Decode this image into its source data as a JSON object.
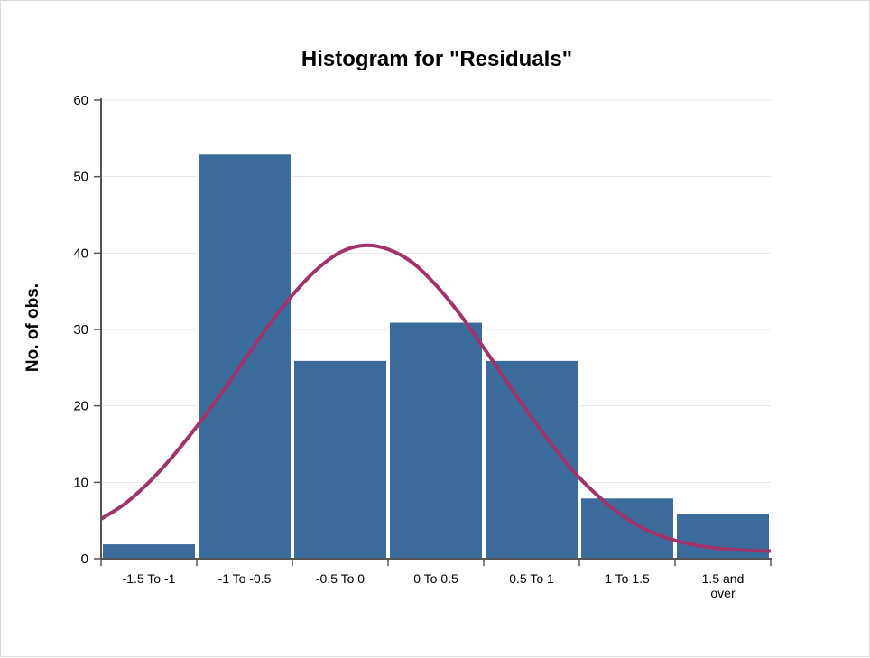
{
  "chart_data": {
    "type": "bar",
    "title": "Histogram for \"Residuals\"",
    "xlabel": "",
    "ylabel": "No. of obs.",
    "ylim": [
      0,
      60
    ],
    "yticks": [
      0,
      10,
      20,
      30,
      40,
      50,
      60
    ],
    "grid": true,
    "categories": [
      [
        "-1.5 To -1"
      ],
      [
        "-1 To -0.5"
      ],
      [
        "-0.5 To 0"
      ],
      [
        "0 To 0.5"
      ],
      [
        "0.5 To 1"
      ],
      [
        "1 To 1.5"
      ],
      [
        "1.5 and",
        "over"
      ]
    ],
    "values": [
      2,
      53,
      26,
      31,
      26,
      8,
      6
    ],
    "normal_curve": {
      "x_bins": [
        0,
        0.25,
        0.5,
        0.75,
        1,
        1.25,
        1.5,
        1.75,
        2,
        2.25,
        2.5,
        2.75,
        3,
        3.25,
        3.5,
        3.75,
        4,
        4.25,
        4.5,
        4.75,
        5,
        5.25,
        5.5,
        5.75,
        6,
        6.25,
        6.5,
        6.75,
        7
      ],
      "y": [
        5.2,
        7.2,
        10.0,
        13.4,
        17.3,
        21.5,
        26.0,
        30.5,
        34.5,
        37.8,
        40.1,
        41.0,
        40.5,
        38.8,
        35.8,
        32.0,
        27.6,
        23.0,
        18.5,
        14.3,
        10.6,
        7.6,
        5.2,
        3.5,
        2.4,
        1.7,
        1.3,
        1.1,
        1.0
      ]
    },
    "colors": {
      "bar": "#3a6b9b",
      "curve": "#a0336b"
    }
  }
}
